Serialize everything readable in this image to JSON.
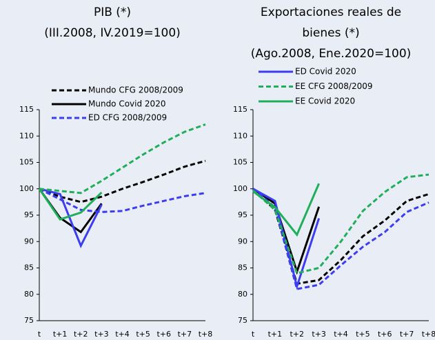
{
  "chart_data": [
    {
      "type": "line",
      "title": [
        "PIB (*)",
        "(III.2008, IV.2019=100)"
      ],
      "categories": [
        "t",
        "t+1",
        "t+2",
        "t+3",
        "t+4",
        "t+5",
        "t+6",
        "t+7",
        "t+8"
      ],
      "ylim": [
        75,
        115
      ],
      "yticks": [
        75,
        80,
        85,
        90,
        95,
        100,
        105,
        110,
        115
      ],
      "series": [
        {
          "name": "Mundo CFG 2008/2009",
          "color": "#000000",
          "dashed": true,
          "values": [
            100,
            98.5,
            97.5,
            98.5,
            100,
            101.3,
            102.7,
            104.2,
            105.3
          ]
        },
        {
          "name": "Mundo Covid 2020",
          "color": "#000000",
          "dashed": false,
          "values": [
            100,
            94.5,
            91.8,
            97.2,
            null,
            null,
            null,
            null,
            null
          ]
        },
        {
          "name": "ED CFG 2008/2009",
          "color": "#3c3cf0",
          "dashed": true,
          "values": [
            100,
            98,
            96,
            95.6,
            95.8,
            96.8,
            97.7,
            98.6,
            99.2
          ]
        },
        {
          "name": "ED Covid 2020",
          "color": "#3c3cf0",
          "dashed": false,
          "values": [
            100,
            99,
            89.2,
            97,
            null,
            null,
            null,
            null,
            null
          ]
        },
        {
          "name": "EE CFG 2008/2009",
          "color": "#1fae5a",
          "dashed": true,
          "values": [
            100,
            99.6,
            99.2,
            101.5,
            104,
            106.5,
            108.8,
            110.8,
            112.2
          ]
        },
        {
          "name": "EE Covid 2020",
          "color": "#1fae5a",
          "dashed": false,
          "values": [
            100,
            94.2,
            95.5,
            99.3,
            null,
            null,
            null,
            null,
            null
          ]
        }
      ]
    },
    {
      "type": "line",
      "title": [
        "Exportaciones reales de",
        "bienes (*)",
        "(Ago.2008, Ene.2020=100)"
      ],
      "categories": [
        "t",
        "t+1",
        "t+2",
        "t+3",
        "t+4",
        "t+5",
        "t+6",
        "t+7",
        "t+8"
      ],
      "ylim": [
        75,
        115
      ],
      "yticks": [
        75,
        80,
        85,
        90,
        95,
        100,
        105,
        110,
        115
      ],
      "series": [
        {
          "values": [
            100,
            96,
            82,
            82.7,
            86.5,
            91,
            94,
            97.7,
            99
          ]
        },
        {
          "values": [
            100,
            97.2,
            84.3,
            96.6,
            null,
            null,
            null,
            null,
            null
          ]
        },
        {
          "values": [
            100,
            96.5,
            81,
            81.8,
            85.5,
            89,
            91.8,
            95.6,
            97.4
          ]
        },
        {
          "values": [
            100,
            97.7,
            81.5,
            94.4,
            null,
            null,
            null,
            null,
            null
          ]
        },
        {
          "values": [
            99.7,
            96,
            84,
            85,
            90,
            95.8,
            99.4,
            102.2,
            102.7
          ]
        },
        {
          "values": [
            99.5,
            96.5,
            91.3,
            101,
            null,
            null,
            null,
            null,
            null
          ]
        }
      ]
    }
  ]
}
